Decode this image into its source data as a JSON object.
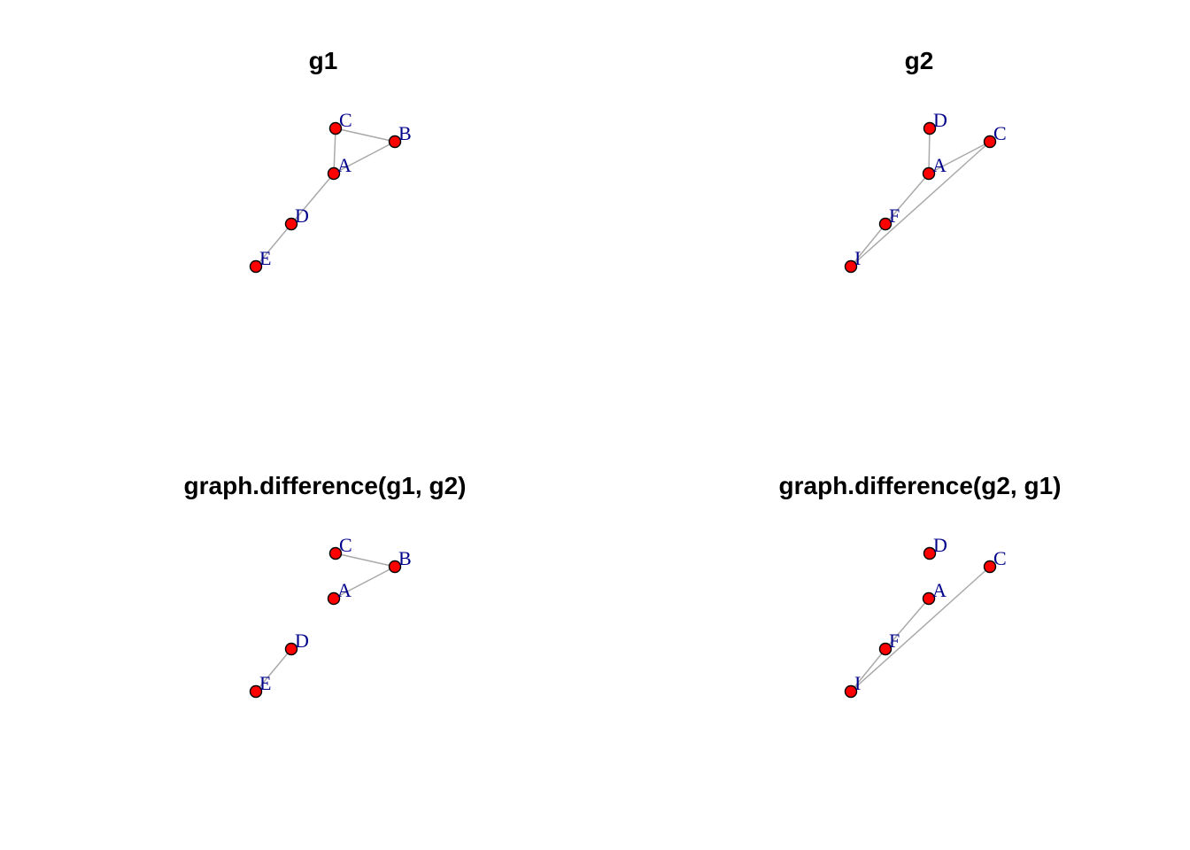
{
  "colors": {
    "vertex_fill": "#ff0000",
    "vertex_border": "#000000",
    "edge": "#a9a9a9",
    "label": "#00008b",
    "title": "#000000"
  },
  "panels": [
    {
      "id": "g1",
      "title": "g1",
      "vertices": [
        "A",
        "B",
        "C",
        "D",
        "E"
      ],
      "edges": [
        [
          "A",
          "B"
        ],
        [
          "A",
          "C"
        ],
        [
          "B",
          "C"
        ],
        [
          "A",
          "D"
        ],
        [
          "D",
          "E"
        ]
      ]
    },
    {
      "id": "g2",
      "title": "g2",
      "vertices": [
        "A",
        "C",
        "D",
        "F",
        "I"
      ],
      "edges": [
        [
          "A",
          "D"
        ],
        [
          "A",
          "C"
        ],
        [
          "A",
          "F"
        ],
        [
          "F",
          "I"
        ],
        [
          "C",
          "I"
        ]
      ]
    },
    {
      "id": "diff-g1-g2",
      "title": "graph.difference(g1, g2)",
      "vertices": [
        "A",
        "B",
        "C",
        "D",
        "E"
      ],
      "edges": [
        [
          "A",
          "B"
        ],
        [
          "B",
          "C"
        ],
        [
          "D",
          "E"
        ]
      ]
    },
    {
      "id": "diff-g2-g1",
      "title": "graph.difference(g2, g1)",
      "vertices": [
        "A",
        "C",
        "D",
        "F",
        "I"
      ],
      "edges": [
        [
          "A",
          "F"
        ],
        [
          "F",
          "I"
        ],
        [
          "C",
          "I"
        ]
      ]
    }
  ]
}
